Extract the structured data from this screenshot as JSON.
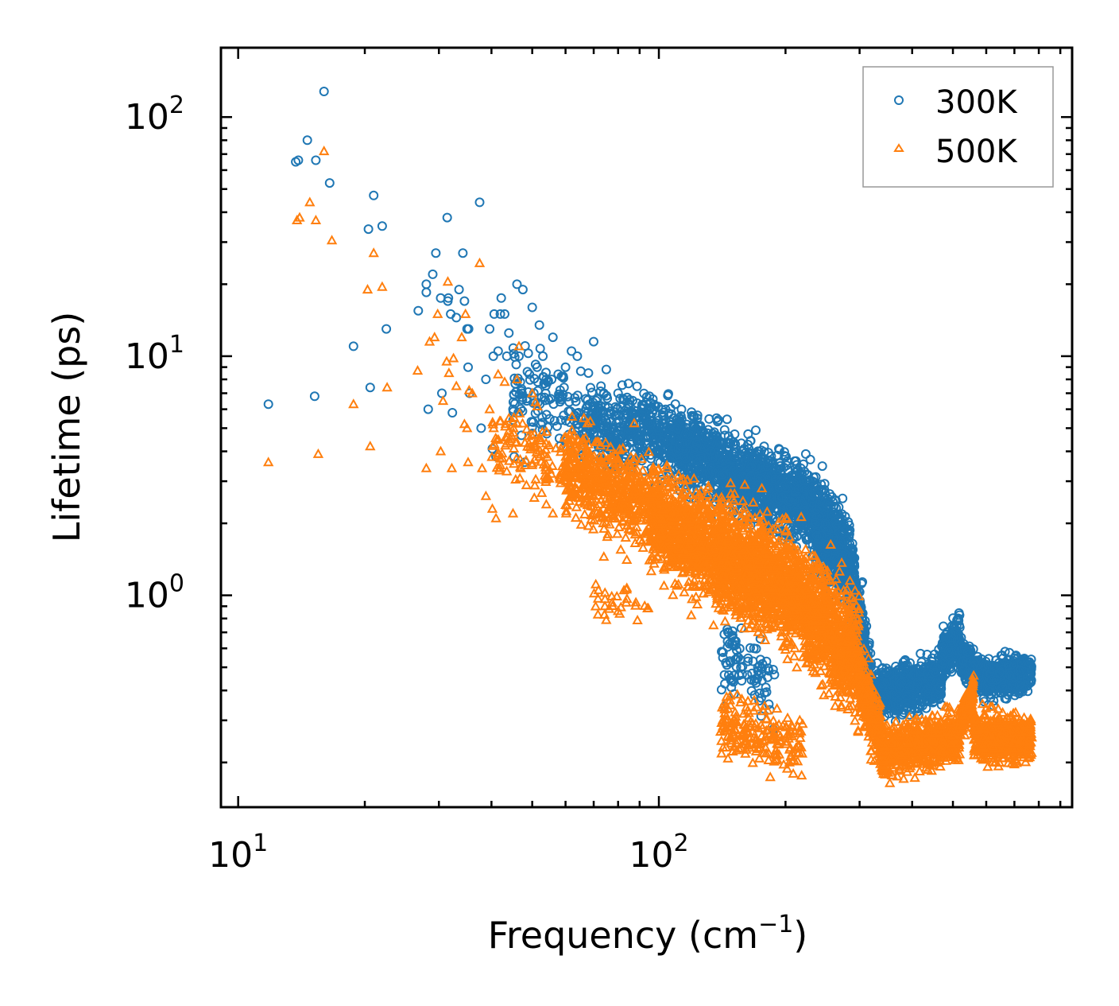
{
  "chart_data": {
    "type": "scatter",
    "title": "",
    "xlabel": "Frequency (cm",
    "xlabel_sup": "−1",
    "xlabel_close": ")",
    "ylabel": "Lifetime (ps)",
    "xscale": "log",
    "yscale": "log",
    "xlim": [
      9.1,
      960
    ],
    "ylim": [
      0.13,
      195
    ],
    "x_ticks": [
      {
        "value": 10,
        "base": "10",
        "exp": "1"
      },
      {
        "value": 100,
        "base": "10",
        "exp": "2"
      }
    ],
    "y_ticks": [
      {
        "value": 1,
        "base": "10",
        "exp": "0"
      },
      {
        "value": 10,
        "base": "10",
        "exp": "1"
      },
      {
        "value": 100,
        "base": "10",
        "exp": "2"
      }
    ],
    "legend": {
      "position": "top-right"
    },
    "series": [
      {
        "name": "300K",
        "marker": "circle",
        "color": "#1f77b4",
        "explicit_points": [
          [
            11.8,
            6.3
          ],
          [
            13.7,
            65
          ],
          [
            13.9,
            66
          ],
          [
            14.6,
            80
          ],
          [
            15.2,
            6.8
          ],
          [
            15.3,
            66
          ],
          [
            16.0,
            128
          ],
          [
            16.5,
            53
          ],
          [
            18.8,
            11
          ],
          [
            20.4,
            34
          ],
          [
            20.6,
            7.4
          ],
          [
            21.0,
            47
          ],
          [
            22.0,
            35
          ],
          [
            22.5,
            13
          ],
          [
            26.8,
            15.5
          ],
          [
            28.0,
            18.5
          ],
          [
            28.0,
            20
          ],
          [
            28.3,
            6.0
          ],
          [
            29.0,
            22
          ],
          [
            29.5,
            27
          ],
          [
            30.3,
            17.5
          ],
          [
            30.5,
            7
          ],
          [
            31.4,
            38
          ],
          [
            31.5,
            17
          ],
          [
            31.6,
            17.5
          ],
          [
            32.0,
            15
          ],
          [
            32.3,
            5.8
          ],
          [
            33.0,
            14.5
          ],
          [
            33.5,
            19
          ],
          [
            34.2,
            27
          ],
          [
            34.5,
            17
          ],
          [
            35.0,
            13
          ],
          [
            35.2,
            9
          ],
          [
            35.3,
            13
          ],
          [
            35.5,
            7
          ],
          [
            37.5,
            44
          ],
          [
            37.8,
            5.0
          ],
          [
            38.8,
            8
          ],
          [
            39.6,
            13
          ],
          [
            40.2,
            4.1
          ],
          [
            40.4,
            10
          ],
          [
            40.6,
            15
          ],
          [
            41.0,
            3.8
          ],
          [
            41.5,
            10.5
          ],
          [
            42.0,
            15
          ],
          [
            42.2,
            17.5
          ],
          [
            43.0,
            15
          ],
          [
            43.5,
            10
          ],
          [
            44.0,
            12.5
          ],
          [
            45.0,
            6.0
          ],
          [
            45.3,
            3.8
          ],
          [
            46.0,
            20
          ],
          [
            46.5,
            10
          ],
          [
            47.5,
            19
          ],
          [
            48.0,
            3.6
          ],
          [
            48.5,
            6.5
          ],
          [
            50.0,
            16
          ],
          [
            52.0,
            13.5
          ],
          [
            53.0,
            10
          ],
          [
            54.0,
            8
          ],
          [
            56.0,
            12
          ],
          [
            60.0,
            9
          ],
          [
            62.0,
            10.5
          ],
          [
            64.0,
            10
          ],
          [
            68.0,
            8.5
          ],
          [
            70.0,
            11.5
          ],
          [
            75.0,
            8.8
          ],
          [
            80.0,
            7.0
          ],
          [
            95.0,
            6.8
          ],
          [
            170.0,
            4.9
          ]
        ],
        "bands": [
          {
            "x": [
              45,
              66
            ],
            "center": [
              7.5,
              5.4
            ],
            "spread": 0.13,
            "count": 120
          },
          {
            "x": [
              66,
              110
            ],
            "center": [
              5.4,
              4.4
            ],
            "spread": 0.12,
            "count": 450
          },
          {
            "x": [
              110,
              150
            ],
            "center": [
              4.4,
              3.3
            ],
            "spread": 0.11,
            "count": 500
          },
          {
            "x": [
              150,
              230
            ],
            "center": [
              3.2,
              2.4
            ],
            "spread": 0.11,
            "count": 800
          },
          {
            "x": [
              230,
              290
            ],
            "center": [
              2.2,
              1.3
            ],
            "spread": 0.13,
            "count": 550
          },
          {
            "x": [
              290,
              320
            ],
            "center": [
              1.0,
              0.38
            ],
            "spread": 0.12,
            "count": 300
          },
          {
            "x": [
              320,
              470
            ],
            "center": [
              0.38,
              0.45
            ],
            "spread": 0.07,
            "count": 650
          },
          {
            "x": [
              470,
              520
            ],
            "center": [
              0.55,
              0.68
            ],
            "spread": 0.06,
            "count": 200
          },
          {
            "x": [
              520,
              600
            ],
            "center": [
              0.55,
              0.44
            ],
            "spread": 0.06,
            "count": 250
          },
          {
            "x": [
              600,
              770
            ],
            "center": [
              0.44,
              0.48
            ],
            "spread": 0.05,
            "count": 420
          },
          {
            "x": [
              140,
              190
            ],
            "center": [
              0.55,
              0.42
            ],
            "spread": 0.12,
            "count": 90
          }
        ]
      },
      {
        "name": "500K",
        "marker": "triangle",
        "color": "#ff7f0e",
        "explicit_points": [
          [
            11.8,
            3.6
          ],
          [
            13.8,
            37
          ],
          [
            14.0,
            38
          ],
          [
            14.8,
            44
          ],
          [
            15.3,
            37
          ],
          [
            15.5,
            3.9
          ],
          [
            16.0,
            72
          ],
          [
            16.7,
            30.5
          ],
          [
            18.8,
            6.3
          ],
          [
            20.3,
            19
          ],
          [
            20.6,
            4.2
          ],
          [
            21.0,
            27
          ],
          [
            22.0,
            19.5
          ],
          [
            22.6,
            7.4
          ],
          [
            26.7,
            8.7
          ],
          [
            28.0,
            3.4
          ],
          [
            28.5,
            11.5
          ],
          [
            29.3,
            12
          ],
          [
            29.8,
            15
          ],
          [
            30.3,
            4
          ],
          [
            30.7,
            6.5
          ],
          [
            31.3,
            9.5
          ],
          [
            31.5,
            20.5
          ],
          [
            31.7,
            8.5
          ],
          [
            32.2,
            3.4
          ],
          [
            32.5,
            9.8
          ],
          [
            33.0,
            7.5
          ],
          [
            34.0,
            12
          ],
          [
            34.5,
            5.2
          ],
          [
            34.7,
            15
          ],
          [
            35.0,
            5.0
          ],
          [
            35.2,
            3.6
          ],
          [
            35.4,
            7.2
          ],
          [
            36.0,
            7
          ],
          [
            37.5,
            24.5
          ],
          [
            38.0,
            3.4
          ],
          [
            38.8,
            2.6
          ],
          [
            39.6,
            6.0
          ],
          [
            40.2,
            2.3
          ],
          [
            40.5,
            5.0
          ],
          [
            41.0,
            2.1
          ],
          [
            41.5,
            8.4
          ],
          [
            42.0,
            3.5
          ],
          [
            43.0,
            7.8
          ],
          [
            43.5,
            3.3
          ],
          [
            44.0,
            5.5
          ],
          [
            45.0,
            2.2
          ],
          [
            46.0,
            8.0
          ],
          [
            46.5,
            11
          ],
          [
            48.0,
            3.5
          ],
          [
            50.0,
            7.0
          ],
          [
            52.0,
            3.8
          ],
          [
            54.0,
            2.4
          ],
          [
            56.0,
            2.2
          ],
          [
            60.0,
            4.6
          ],
          [
            64.0,
            4.5
          ],
          [
            68.0,
            1.95
          ],
          [
            74.0,
            1.45
          ],
          [
            95.0,
            1.4
          ],
          [
            160.0,
            2.9
          ]
        ],
        "bands": [
          {
            "x": [
              40,
              60
            ],
            "center": [
              4.8,
              3.4
            ],
            "spread": 0.13,
            "count": 110
          },
          {
            "x": [
              60,
              95
            ],
            "center": [
              3.4,
              2.4
            ],
            "spread": 0.13,
            "count": 500
          },
          {
            "x": [
              95,
              140
            ],
            "center": [
              2.2,
              1.5
            ],
            "spread": 0.15,
            "count": 750
          },
          {
            "x": [
              140,
              220
            ],
            "center": [
              1.5,
              1.0
            ],
            "spread": 0.16,
            "count": 1100
          },
          {
            "x": [
              220,
              300
            ],
            "center": [
              0.9,
              0.55
            ],
            "spread": 0.17,
            "count": 750
          },
          {
            "x": [
              300,
              340
            ],
            "center": [
              0.45,
              0.24
            ],
            "spread": 0.1,
            "count": 250
          },
          {
            "x": [
              340,
              520
            ],
            "center": [
              0.22,
              0.26
            ],
            "spread": 0.07,
            "count": 650
          },
          {
            "x": [
              520,
              560
            ],
            "center": [
              0.3,
              0.38
            ],
            "spread": 0.06,
            "count": 150
          },
          {
            "x": [
              560,
              770
            ],
            "center": [
              0.26,
              0.25
            ],
            "spread": 0.07,
            "count": 500
          },
          {
            "x": [
              140,
              220
            ],
            "center": [
              0.28,
              0.24
            ],
            "spread": 0.09,
            "count": 200
          },
          {
            "x": [
              70,
              95
            ],
            "center": [
              0.95,
              0.85
            ],
            "spread": 0.06,
            "count": 30
          }
        ]
      }
    ]
  }
}
